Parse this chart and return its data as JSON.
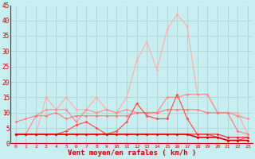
{
  "background_color": "#c8eef0",
  "grid_color": "#aacccc",
  "xlabel": "Vent moyen/en rafales ( km/h )",
  "xlim": [
    -0.5,
    23.5
  ],
  "ylim": [
    0,
    45
  ],
  "yticks": [
    0,
    5,
    10,
    15,
    20,
    25,
    30,
    35,
    40,
    45
  ],
  "xticks": [
    0,
    1,
    2,
    3,
    4,
    5,
    6,
    7,
    8,
    9,
    10,
    11,
    12,
    13,
    14,
    15,
    16,
    17,
    18,
    19,
    20,
    21,
    22,
    23
  ],
  "series": [
    {
      "color": "#ffaaaa",
      "lw": 0.8,
      "values": [
        3,
        3,
        3,
        15,
        11,
        15,
        11,
        11,
        15,
        11,
        10,
        15,
        27,
        33,
        24,
        37,
        42,
        38,
        16,
        16,
        10,
        10,
        10,
        3
      ]
    },
    {
      "color": "#ff8888",
      "lw": 0.8,
      "values": [
        3,
        3,
        9,
        11,
        11,
        11,
        7,
        11,
        10,
        11,
        10,
        11,
        10,
        10,
        10,
        15,
        15,
        16,
        16,
        16,
        10,
        10,
        9,
        8
      ]
    },
    {
      "color": "#ff7777",
      "lw": 0.8,
      "values": [
        7,
        8,
        9,
        9,
        10,
        8,
        9,
        9,
        9,
        9,
        9,
        9,
        10,
        10,
        10,
        11,
        11,
        11,
        11,
        10,
        10,
        10,
        4,
        3
      ]
    },
    {
      "color": "#ff4444",
      "lw": 0.8,
      "values": [
        3,
        3,
        3,
        3,
        3,
        4,
        6,
        7,
        5,
        3,
        4,
        7,
        13,
        9,
        8,
        8,
        16,
        8,
        3,
        3,
        2,
        1,
        1,
        2
      ]
    },
    {
      "color": "#dd2222",
      "lw": 0.8,
      "values": [
        3,
        3,
        3,
        3,
        3,
        3,
        3,
        3,
        3,
        3,
        3,
        3,
        3,
        3,
        3,
        3,
        3,
        3,
        3,
        3,
        3,
        2,
        2,
        2
      ]
    },
    {
      "color": "#cc0000",
      "lw": 1.2,
      "values": [
        3,
        3,
        3,
        3,
        3,
        3,
        3,
        3,
        3,
        3,
        3,
        3,
        3,
        3,
        3,
        3,
        3,
        3,
        2,
        2,
        2,
        1,
        1,
        1
      ]
    }
  ]
}
